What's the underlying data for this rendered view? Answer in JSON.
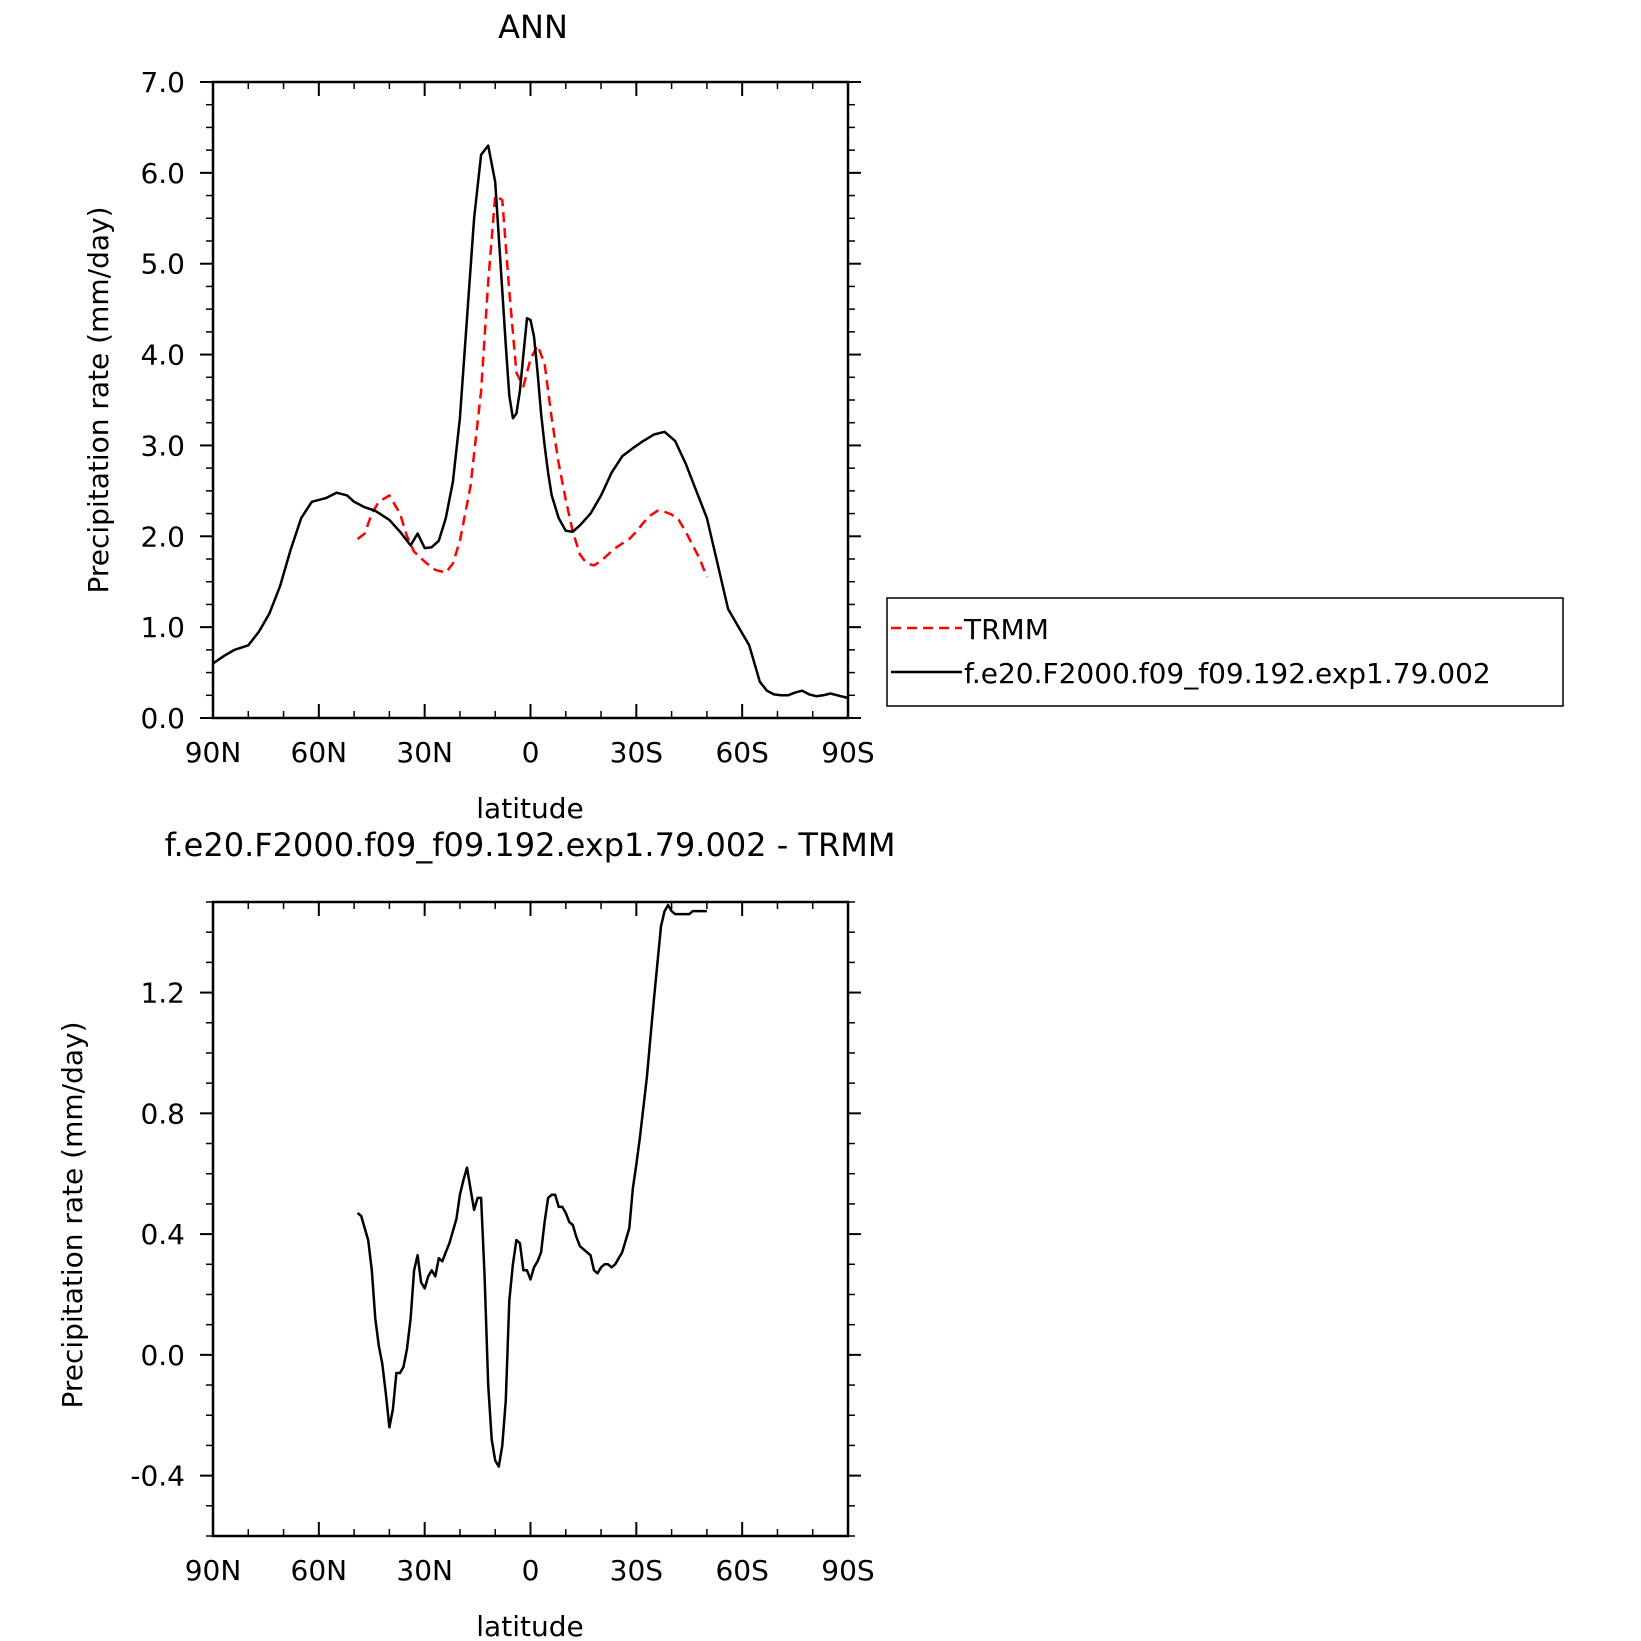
{
  "chart_data": [
    {
      "type": "line",
      "title": "ANN",
      "xlabel": "latitude",
      "ylabel": "Precipitation rate (mm/day)",
      "xlim": [
        90,
        -90
      ],
      "ylim": [
        0,
        7
      ],
      "x_ticks": [
        90,
        60,
        30,
        0,
        -30,
        -60,
        -90
      ],
      "x_tick_labels": [
        "90N",
        "60N",
        "30N",
        "0",
        "30S",
        "60S",
        "90S"
      ],
      "y_ticks": [
        0,
        1,
        2,
        3,
        4,
        5,
        6,
        7
      ],
      "y_tick_labels": [
        "0.0",
        "1.0",
        "2.0",
        "3.0",
        "4.0",
        "5.0",
        "6.0",
        "7.0"
      ],
      "grid": false,
      "legend_position": "right",
      "series": [
        {
          "name": "TRMM",
          "color": "#ff0000",
          "style": "dashed",
          "x": [
            49,
            47,
            45,
            43,
            40,
            37,
            35,
            33,
            30,
            27,
            24,
            22,
            20,
            17,
            14,
            12,
            10,
            8,
            6,
            4,
            2,
            0,
            -2,
            -4,
            -6,
            -8,
            -10,
            -12,
            -14,
            -16,
            -18,
            -20,
            -22,
            -24,
            -26,
            -28,
            -30,
            -32,
            -34,
            -36,
            -38,
            -40,
            -42,
            -44,
            -46,
            -48,
            -50
          ],
          "y": [
            1.97,
            2.03,
            2.25,
            2.38,
            2.45,
            2.25,
            2.0,
            1.83,
            1.72,
            1.63,
            1.6,
            1.7,
            1.95,
            2.55,
            3.6,
            4.8,
            5.75,
            5.7,
            4.7,
            3.8,
            3.65,
            3.95,
            4.1,
            3.9,
            3.3,
            2.8,
            2.4,
            2.05,
            1.8,
            1.7,
            1.68,
            1.73,
            1.8,
            1.87,
            1.92,
            1.97,
            2.05,
            2.15,
            2.23,
            2.28,
            2.27,
            2.24,
            2.18,
            2.05,
            1.9,
            1.75,
            1.55
          ]
        },
        {
          "name": "f.e20.F2000.f09_f09.192.exp1.79.002",
          "color": "#000000",
          "style": "solid",
          "x": [
            90,
            87,
            84,
            80,
            77,
            74,
            71,
            68,
            65,
            62,
            60,
            58,
            55,
            52,
            50,
            47,
            44,
            40,
            37,
            34,
            32,
            30,
            28,
            26,
            24,
            22,
            20,
            18,
            16,
            14,
            12,
            10,
            8,
            7,
            6,
            5,
            4,
            3,
            2,
            1,
            0,
            -1,
            -2,
            -3,
            -4,
            -5,
            -6,
            -8,
            -10,
            -12,
            -14,
            -17,
            -20,
            -23,
            -26,
            -29,
            -32,
            -35,
            -38,
            -41,
            -44,
            -47,
            -50,
            -53,
            -56,
            -59,
            -62,
            -65,
            -67,
            -69,
            -71,
            -73,
            -75,
            -77,
            -79,
            -81,
            -83,
            -85,
            -87,
            -90
          ],
          "y": [
            0.6,
            0.68,
            0.75,
            0.8,
            0.95,
            1.15,
            1.45,
            1.85,
            2.2,
            2.38,
            2.4,
            2.42,
            2.48,
            2.45,
            2.38,
            2.32,
            2.28,
            2.18,
            2.05,
            1.9,
            2.03,
            1.87,
            1.88,
            1.95,
            2.2,
            2.6,
            3.3,
            4.4,
            5.5,
            6.2,
            6.3,
            5.9,
            4.7,
            4.1,
            3.55,
            3.3,
            3.35,
            3.6,
            4.0,
            4.4,
            4.38,
            4.2,
            3.8,
            3.35,
            3.0,
            2.7,
            2.45,
            2.2,
            2.06,
            2.05,
            2.12,
            2.25,
            2.45,
            2.7,
            2.88,
            2.97,
            3.05,
            3.12,
            3.15,
            3.05,
            2.8,
            2.5,
            2.2,
            1.7,
            1.2,
            1.0,
            0.8,
            0.4,
            0.3,
            0.26,
            0.25,
            0.25,
            0.28,
            0.3,
            0.26,
            0.24,
            0.25,
            0.27,
            0.25,
            0.22
          ]
        }
      ]
    },
    {
      "type": "line",
      "title": "f.e20.F2000.f09_f09.192.exp1.79.002 - TRMM",
      "xlabel": "latitude",
      "ylabel": "Precipitation rate (mm/day)",
      "xlim": [
        90,
        -90
      ],
      "ylim": [
        -0.6,
        1.5
      ],
      "x_ticks": [
        90,
        60,
        30,
        0,
        -30,
        -60,
        -90
      ],
      "x_tick_labels": [
        "90N",
        "60N",
        "30N",
        "0",
        "30S",
        "60S",
        "90S"
      ],
      "y_ticks": [
        -0.4,
        0.0,
        0.4,
        0.8,
        1.2
      ],
      "y_tick_labels": [
        "-0.4",
        "0.0",
        "0.4",
        "0.8",
        "1.2"
      ],
      "grid": false,
      "series": [
        {
          "color": "#000000",
          "style": "solid",
          "x": [
            49,
            48,
            47,
            46,
            45,
            44,
            43,
            42,
            41,
            40,
            39,
            38,
            37,
            36,
            35,
            34,
            33,
            32,
            31,
            30,
            29,
            28,
            27,
            26,
            25,
            24,
            23,
            22,
            21,
            20,
            19,
            18,
            17,
            16,
            15,
            14,
            13,
            12,
            11,
            10,
            9,
            8,
            7,
            6,
            5,
            4,
            3,
            2,
            1,
            0,
            -1,
            -2,
            -3,
            -4,
            -5,
            -6,
            -7,
            -8,
            -9,
            -10,
            -11,
            -12,
            -13,
            -14,
            -15,
            -16,
            -17,
            -18,
            -19,
            -20,
            -21,
            -22,
            -23,
            -24,
            -25,
            -26,
            -27,
            -28,
            -29,
            -30,
            -31,
            -32,
            -33,
            -34,
            -35,
            -36,
            -37,
            -38,
            -39,
            -40,
            -41,
            -42,
            -43,
            -44,
            -45,
            -46,
            -47,
            -48,
            -49,
            -50
          ],
          "y": [
            0.47,
            0.46,
            0.42,
            0.38,
            0.28,
            0.12,
            0.03,
            -0.03,
            -0.13,
            -0.24,
            -0.18,
            -0.06,
            -0.06,
            -0.04,
            0.02,
            0.12,
            0.28,
            0.33,
            0.24,
            0.22,
            0.26,
            0.28,
            0.26,
            0.32,
            0.31,
            0.34,
            0.37,
            0.41,
            0.45,
            0.53,
            0.58,
            0.62,
            0.55,
            0.48,
            0.52,
            0.52,
            0.26,
            -0.1,
            -0.28,
            -0.35,
            -0.37,
            -0.3,
            -0.15,
            0.18,
            0.3,
            0.38,
            0.37,
            0.28,
            0.28,
            0.25,
            0.29,
            0.31,
            0.34,
            0.44,
            0.52,
            0.53,
            0.53,
            0.49,
            0.49,
            0.47,
            0.44,
            0.43,
            0.39,
            0.36,
            0.35,
            0.34,
            0.33,
            0.28,
            0.27,
            0.29,
            0.3,
            0.3,
            0.29,
            0.3,
            0.32,
            0.34,
            0.38,
            0.42,
            0.55,
            0.63,
            0.72,
            0.82,
            0.92,
            1.05,
            1.18,
            1.3,
            1.42,
            1.47,
            1.49,
            1.47,
            1.46,
            1.46,
            1.46,
            1.46,
            1.46,
            1.47,
            1.47,
            1.47,
            1.47,
            1.47
          ]
        }
      ]
    }
  ]
}
